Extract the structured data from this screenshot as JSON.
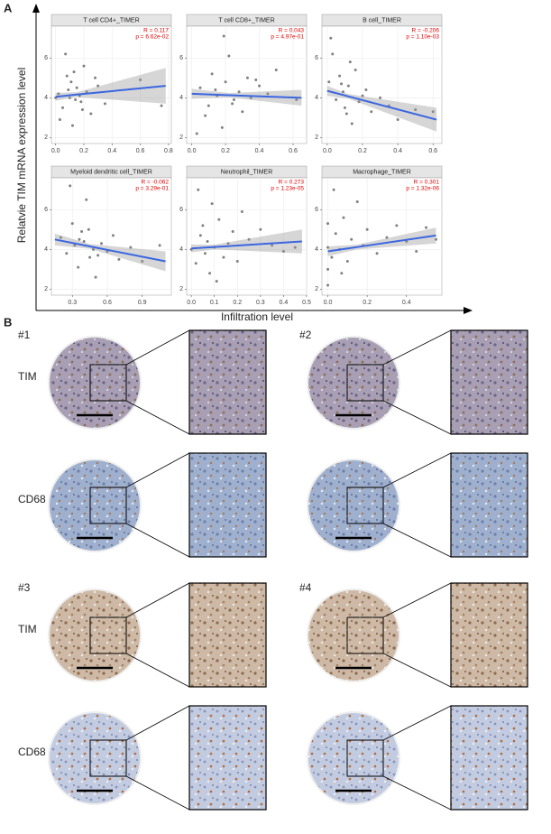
{
  "panel_a": {
    "label": "A",
    "y_label": "Relatvie TIM mRNA expression level",
    "x_label": "Infiltration level"
  },
  "panel_b": {
    "label": "B",
    "cases": [
      "#1",
      "#2",
      "#3",
      "#4"
    ],
    "stains": [
      "TIM",
      "CD68"
    ]
  },
  "chart_data": [
    {
      "type": "scatter",
      "title": "T cell CD4+_TIMER",
      "annotations": [
        "R = 0.117",
        "p = 6.62e-02"
      ],
      "color": "#555555",
      "fit_color": "#3b66e0",
      "x": [
        0.02,
        0.05,
        0.08,
        0.1,
        0.12,
        0.15,
        0.18,
        0.2,
        0.22,
        0.25,
        0.07,
        0.11,
        0.14,
        0.17,
        0.3,
        0.35,
        0.03,
        0.09,
        0.13,
        0.19,
        0.6,
        0.75,
        0.0,
        0.28
      ],
      "y": [
        4.2,
        3.5,
        5.1,
        4.0,
        2.6,
        4.5,
        3.8,
        5.6,
        4.3,
        3.2,
        6.2,
        4.8,
        3.9,
        4.1,
        4.6,
        3.7,
        2.9,
        4.4,
        5.3,
        3.4,
        4.9,
        3.6,
        4.0,
        5.0
      ],
      "fit": {
        "x": [
          0,
          0.15,
          0.78
        ],
        "y": [
          4.05,
          4.16,
          4.6
        ],
        "lower": [
          3.85,
          4.04,
          3.7
        ],
        "upper": [
          4.25,
          4.28,
          5.5
        ]
      },
      "xlim": [
        -0.03,
        0.82
      ],
      "ylim": [
        1.7,
        7.6
      ],
      "xticks": [
        {
          "value": 0,
          "label": "0.0"
        },
        0.2,
        0.4,
        0.6,
        0.8
      ],
      "yticks": [
        2,
        4,
        6
      ]
    },
    {
      "type": "scatter",
      "title": "T cell CD8+_TIMER",
      "annotations": [
        "R = 0.043",
        "p = 4.97e-01"
      ],
      "color": "#555555",
      "fit_color": "#3b66e0",
      "x": [
        0.05,
        0.1,
        0.12,
        0.15,
        0.18,
        0.2,
        0.22,
        0.25,
        0.28,
        0.3,
        0.33,
        0.35,
        0.4,
        0.08,
        0.14,
        0.19,
        0.24,
        0.45,
        0.5,
        0.62,
        0.03,
        0.38
      ],
      "y": [
        4.5,
        3.6,
        5.2,
        4.1,
        2.5,
        4.8,
        6.1,
        3.9,
        4.3,
        3.3,
        5.0,
        4.0,
        4.6,
        3.1,
        4.4,
        7.1,
        3.7,
        4.2,
        5.4,
        3.9,
        2.2,
        4.9
      ],
      "fit": {
        "x": [
          0,
          0.22,
          0.65
        ],
        "y": [
          4.2,
          4.13,
          4.0
        ],
        "lower": [
          3.95,
          4.02,
          3.6
        ],
        "upper": [
          4.45,
          4.24,
          4.4
        ]
      },
      "xlim": [
        -0.03,
        0.68
      ],
      "ylim": [
        1.7,
        7.6
      ],
      "xticks": [
        {
          "value": 0,
          "label": "0.0"
        },
        0.2,
        0.4,
        0.6
      ],
      "yticks": [
        2,
        4,
        6
      ]
    },
    {
      "type": "scatter",
      "title": "B cell_TIMER",
      "annotations": [
        "R = -0.206",
        "p = 1.10e-03"
      ],
      "color": "#555555",
      "fit_color": "#3b66e0",
      "x": [
        0.01,
        0.03,
        0.05,
        0.07,
        0.09,
        0.1,
        0.12,
        0.14,
        0.16,
        0.18,
        0.2,
        0.25,
        0.3,
        0.35,
        0.4,
        0.5,
        0.6,
        0.02,
        0.08,
        0.11,
        0.13,
        0.22
      ],
      "y": [
        4.8,
        6.2,
        3.9,
        5.1,
        4.3,
        3.5,
        4.6,
        2.7,
        5.4,
        3.8,
        4.1,
        3.3,
        4.0,
        3.6,
        2.9,
        3.4,
        3.3,
        7.0,
        4.7,
        3.2,
        5.8,
        4.4
      ],
      "fit": {
        "x": [
          0,
          0.12,
          0.62
        ],
        "y": [
          4.35,
          4.07,
          2.9
        ],
        "lower": [
          4.1,
          3.95,
          2.3
        ],
        "upper": [
          4.6,
          4.19,
          3.5
        ]
      },
      "xlim": [
        -0.03,
        0.65
      ],
      "ylim": [
        1.7,
        7.6
      ],
      "xticks": [
        {
          "value": 0,
          "label": "0.0"
        },
        0.2,
        0.4,
        0.6
      ],
      "yticks": [
        2,
        4,
        6
      ]
    },
    {
      "type": "scatter",
      "title": "Myeloid dendritic cell_TIMER",
      "annotations": [
        "R = -0.062",
        "p = 3.29e-01"
      ],
      "color": "#555555",
      "fit_color": "#3b66e0",
      "x": [
        0.2,
        0.25,
        0.3,
        0.32,
        0.35,
        0.38,
        0.4,
        0.42,
        0.45,
        0.48,
        0.5,
        0.55,
        0.6,
        0.65,
        0.7,
        0.8,
        0.9,
        1.05,
        0.28,
        0.36,
        0.44,
        0.52
      ],
      "y": [
        4.6,
        3.8,
        5.3,
        4.2,
        3.1,
        4.9,
        4.4,
        6.5,
        3.6,
        4.0,
        2.6,
        4.3,
        3.9,
        4.7,
        3.5,
        4.1,
        3.4,
        4.2,
        7.2,
        4.5,
        5.0,
        3.7
      ],
      "fit": {
        "x": [
          0.15,
          0.45,
          1.1
        ],
        "y": [
          4.5,
          4.15,
          3.4
        ],
        "lower": [
          4.2,
          4.03,
          2.9
        ],
        "upper": [
          4.8,
          4.27,
          3.9
        ]
      },
      "xlim": [
        0.12,
        1.15
      ],
      "ylim": [
        1.7,
        7.6
      ],
      "xticks": [
        0.3,
        0.6,
        0.9
      ],
      "yticks": [
        2,
        4,
        6
      ]
    },
    {
      "type": "scatter",
      "title": "Neutrophil_TIMER",
      "annotations": [
        "R = 0.273",
        "p = 1.23e-05"
      ],
      "color": "#555555",
      "fit_color": "#3b66e0",
      "x": [
        0.0,
        0.02,
        0.04,
        0.05,
        0.06,
        0.07,
        0.08,
        0.1,
        0.12,
        0.14,
        0.16,
        0.18,
        0.2,
        0.25,
        0.3,
        0.35,
        0.4,
        0.45,
        0.03,
        0.09,
        0.11,
        0.22
      ],
      "y": [
        4.0,
        3.3,
        4.7,
        5.2,
        3.8,
        4.4,
        2.8,
        4.1,
        5.5,
        3.6,
        4.3,
        4.9,
        3.4,
        4.5,
        5.0,
        4.2,
        3.9,
        4.1,
        7.0,
        6.3,
        2.4,
        5.9
      ],
      "fit": {
        "x": [
          0,
          0.1,
          0.48
        ],
        "y": [
          4.05,
          4.12,
          4.4
        ],
        "lower": [
          3.85,
          4.0,
          3.8
        ],
        "upper": [
          4.25,
          4.24,
          5.0
        ]
      },
      "xlim": [
        -0.02,
        0.5
      ],
      "ylim": [
        1.7,
        7.6
      ],
      "xticks": [
        {
          "value": 0,
          "label": "0.0"
        },
        0.1,
        0.2,
        0.3,
        0.4,
        0.5
      ],
      "yticks": [
        2,
        4,
        6
      ]
    },
    {
      "type": "scatter",
      "title": "Macrophage_TIMER",
      "annotations": [
        "R = 0.301",
        "p = 1.32e-06"
      ],
      "color": "#555555",
      "fit_color": "#3b66e0",
      "x": [
        0.0,
        0.0,
        0.0,
        0.0,
        0.02,
        0.04,
        0.06,
        0.08,
        0.1,
        0.12,
        0.15,
        0.18,
        0.2,
        0.25,
        0.3,
        0.35,
        0.4,
        0.45,
        0.5,
        0.55,
        0.03,
        0.07
      ],
      "y": [
        2.2,
        3.0,
        4.1,
        5.3,
        3.6,
        4.8,
        4.0,
        5.6,
        3.4,
        4.5,
        6.4,
        4.2,
        5.0,
        3.8,
        4.6,
        5.2,
        4.4,
        3.9,
        5.1,
        4.5,
        7.0,
        2.8
      ],
      "fit": {
        "x": [
          0,
          0.15,
          0.55
        ],
        "y": [
          3.9,
          4.12,
          4.7
        ],
        "lower": [
          3.65,
          4.0,
          4.3
        ],
        "upper": [
          4.15,
          4.24,
          5.1
        ]
      },
      "xlim": [
        -0.03,
        0.58
      ],
      "ylim": [
        1.7,
        7.6
      ],
      "xticks": [
        {
          "value": 0,
          "label": "0.0"
        },
        0.2,
        0.4
      ],
      "yticks": [
        2,
        4,
        6
      ]
    }
  ]
}
